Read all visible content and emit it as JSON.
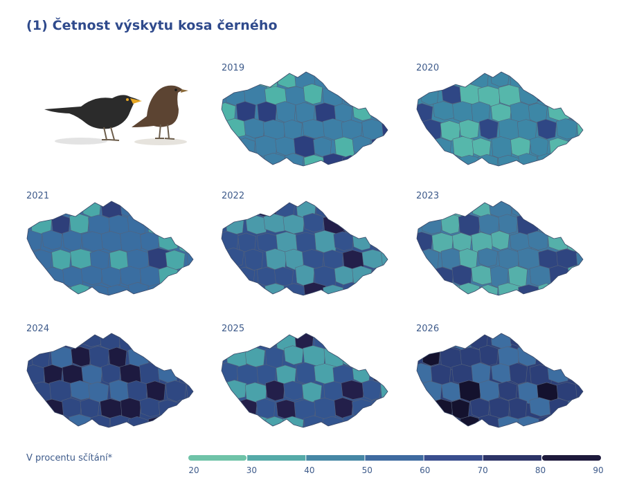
{
  "title": "(1) Četnost výskytu kosa černého",
  "maps": [
    {
      "year": "2019",
      "fill": "#3d7fa6",
      "accent": "#4fb3a8",
      "dark": "#2c3f7e"
    },
    {
      "year": "2020",
      "fill": "#3d87a6",
      "accent": "#56b7ab",
      "dark": "#2f4785"
    },
    {
      "year": "2021",
      "fill": "#3a6ea1",
      "accent": "#4aa8a8",
      "dark": "#2e3f7a"
    },
    {
      "year": "2022",
      "fill": "#33528d",
      "accent": "#4a9aaa",
      "dark": "#231f4a"
    },
    {
      "year": "2023",
      "fill": "#3f7aa3",
      "accent": "#55b0aa",
      "dark": "#2f4580"
    },
    {
      "year": "2024",
      "fill": "#2f4882",
      "accent": "#3b6a9f",
      "dark": "#1d1a40"
    },
    {
      "year": "2025",
      "fill": "#335590",
      "accent": "#4aa2aa",
      "dark": "#231f4a"
    },
    {
      "year": "2026",
      "fill": "#2c3f78",
      "accent": "#3d6ea1",
      "dark": "#14122e"
    }
  ],
  "legend": {
    "label": "V procentu sčítání*",
    "ticks": [
      "20",
      "30",
      "40",
      "50",
      "60",
      "70",
      "80",
      "90"
    ],
    "colors": [
      "#6fc3a8",
      "#55aaa8",
      "#4687a5",
      "#3f6ba0",
      "#3a4e8e",
      "#2d3467",
      "#1e1a3c"
    ]
  }
}
